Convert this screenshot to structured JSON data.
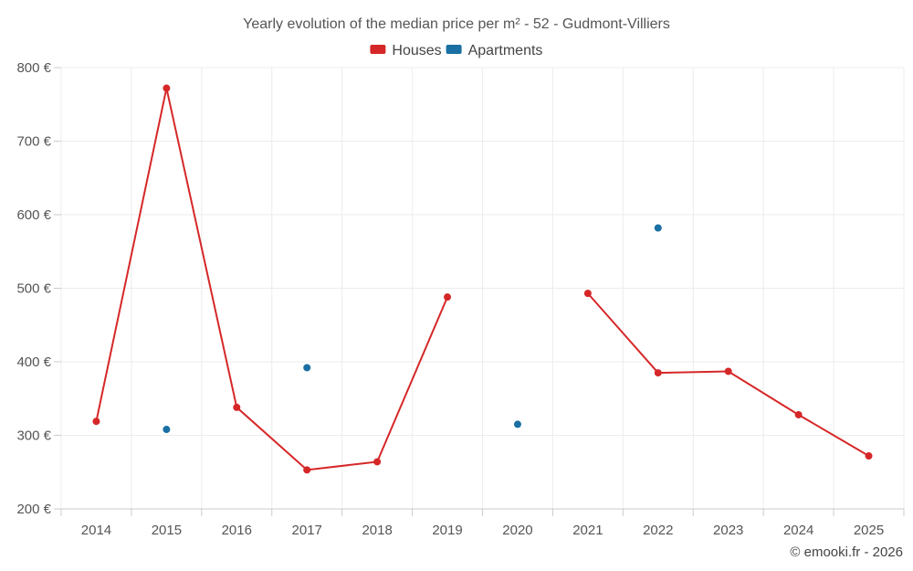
{
  "chart_data": {
    "type": "line",
    "title": "Yearly evolution of the median price per m² - 52 - Gudmont-Villiers",
    "categories": [
      "2014",
      "2015",
      "2016",
      "2017",
      "2018",
      "2019",
      "2020",
      "2021",
      "2022",
      "2023",
      "2024",
      "2025"
    ],
    "series": [
      {
        "name": "Houses",
        "color": "#d62728",
        "values": [
          319,
          772,
          338,
          253,
          264,
          488,
          null,
          493,
          385,
          387,
          328,
          272
        ]
      },
      {
        "name": "Apartments",
        "color": "#1a6fa3",
        "values": [
          null,
          308,
          null,
          392,
          null,
          null,
          315,
          null,
          582,
          null,
          null,
          null
        ]
      }
    ],
    "ylim": [
      200,
      800
    ],
    "yticks": [
      200,
      300,
      400,
      500,
      600,
      700,
      800
    ],
    "ytick_labels": [
      "200 €",
      "300 €",
      "400 €",
      "500 €",
      "600 €",
      "700 €",
      "800 €"
    ],
    "xlabel": "",
    "ylabel": "",
    "grid": true,
    "legend_position": "top-center"
  },
  "credit": "© emooki.fr - 2026"
}
